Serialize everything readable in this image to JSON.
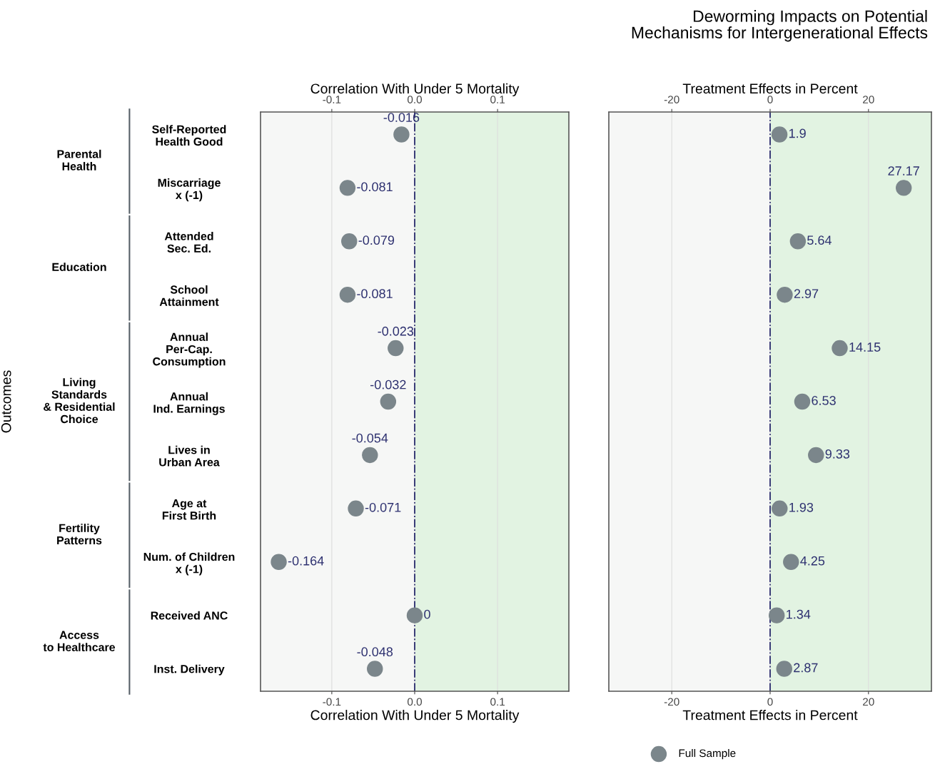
{
  "chart_data": [
    {
      "type": "scatter",
      "xlabel": "Correlation With Under 5 Mortality",
      "x2label": "Correlation With Under 5 Mortality",
      "ylabel": "Outcomes",
      "categories": [
        "Self-Reported\nHealth Good",
        "Miscarriage\nx (-1)",
        "Attended\nSec. Ed.",
        "School\nAttainment",
        "Annual\nPer-Cap.\nConsumption",
        "Annual\nInd. Earnings",
        "Lives in\nUrban Area",
        "Age at\nFirst Birth",
        "Num. of Children\nx (-1)",
        "Received ANC",
        "Inst. Delivery"
      ],
      "series": [
        {
          "name": "Full Sample",
          "color": "#7b868b",
          "values": [
            -0.016,
            -0.081,
            -0.079,
            -0.081,
            -0.023,
            -0.032,
            -0.054,
            -0.071,
            -0.164,
            0,
            -0.048
          ]
        }
      ],
      "xlim": [
        -0.186,
        0.186
      ],
      "xticks": [
        {
          "value": -0.1,
          "label": "-0.1"
        },
        {
          "value": 0,
          "label": "0.0"
        },
        {
          "value": 0.1,
          "label": "0.1"
        }
      ],
      "x2lim": [
        -0.186,
        0.186
      ],
      "x2ticks": [
        {
          "value": -0.1,
          "label": "-0.1"
        },
        {
          "value": 0,
          "label": "0.0"
        },
        {
          "value": 0.1,
          "label": "0.1"
        }
      ],
      "annotations": [
        "Parental\nHealth",
        "Education",
        "Living\nStandards\n& Residential\nChoice",
        "Fertility\nPatterns",
        "Access\nto Healthcare"
      ],
      "ref_lines": [
        {
          "axis": "x",
          "value": 0,
          "color": "#2b2d6e",
          "line_style": "dashdot"
        }
      ],
      "bands": [
        {
          "axis": "x",
          "from": 0,
          "to": 0.186,
          "color": "#e2f3e2"
        }
      ],
      "data_labels": true,
      "grid": "x",
      "marker": "circle",
      "legend": "bottom",
      "orientation": "horizontal"
    },
    {
      "type": "scatter",
      "title": "Deworming Impacts on Potential\nMechanisms for Intergenerational Effects",
      "xlabel": "Treatment Effects in Percent",
      "x2label": "Treatment Effects in Percent",
      "categories": [
        null,
        null,
        null,
        null,
        null,
        null,
        null,
        null,
        null,
        null,
        null
      ],
      "series": [
        {
          "name": "Full Sample",
          "color": "#7b868b",
          "values": [
            1.9,
            27.17,
            5.64,
            2.97,
            14.15,
            6.53,
            9.33,
            1.93,
            4.25,
            1.34,
            2.87
          ]
        }
      ],
      "xlim": [
        -32.8,
        32.8
      ],
      "xticks": [
        -20,
        0,
        20
      ],
      "x2lim": [
        -32.8,
        32.8
      ],
      "x2ticks": [
        -20,
        0,
        20
      ],
      "ref_lines": [
        {
          "axis": "x",
          "value": 0,
          "color": "#2b2d6e",
          "line_style": "dashdot"
        }
      ],
      "bands": [
        {
          "axis": "x",
          "from": 0,
          "to": 32.8,
          "color": "#e2f3e2"
        }
      ],
      "data_labels": true,
      "grid": "x",
      "marker": "circle",
      "tick_labels": "x",
      "orientation": "horizontal"
    }
  ]
}
